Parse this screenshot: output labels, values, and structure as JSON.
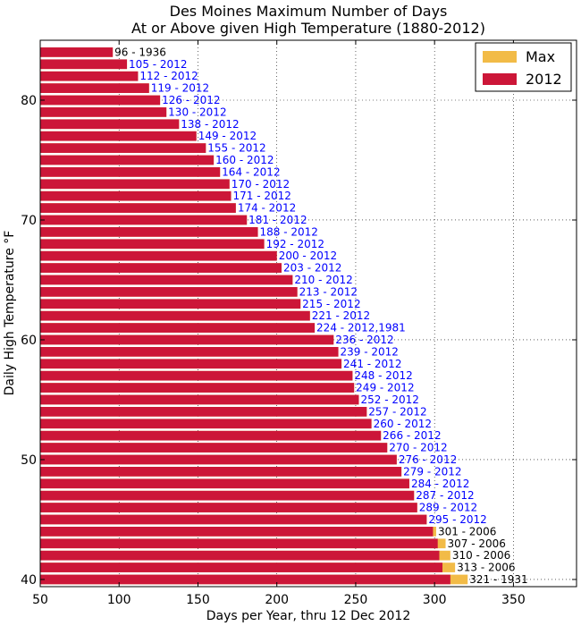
{
  "chart_data": {
    "type": "bar",
    "orientation": "horizontal",
    "title": "Des Moines Maximum Number of Days",
    "subtitle": "At or Above given High Temperature (1880-2012)",
    "xlabel": "Days per Year, thru 12 Dec 2012",
    "ylabel": "Daily High Temperature °F",
    "xlim": [
      50,
      390
    ],
    "ylim": [
      39.4,
      85
    ],
    "xticks": [
      50,
      100,
      150,
      200,
      250,
      300,
      350
    ],
    "yticks": [
      40,
      50,
      60,
      70,
      80
    ],
    "grid": true,
    "legend_position": "top-right",
    "colors": {
      "max": "#f2bb47",
      "y2012": "#cc1638",
      "label_2012": "#0000ff",
      "label_other": "#000000"
    },
    "series": [
      {
        "name": "Max"
      },
      {
        "name": "2012"
      }
    ],
    "data": [
      {
        "temp": 40,
        "max": 321,
        "y2012": 310,
        "label": "321 - 1931",
        "label_color": "black"
      },
      {
        "temp": 41,
        "max": 313,
        "y2012": 305,
        "label": "313 - 2006",
        "label_color": "black"
      },
      {
        "temp": 42,
        "max": 310,
        "y2012": 303,
        "label": "310 - 2006",
        "label_color": "black"
      },
      {
        "temp": 43,
        "max": 307,
        "y2012": 302,
        "label": "307 - 2006",
        "label_color": "black"
      },
      {
        "temp": 44,
        "max": 301,
        "y2012": 299,
        "label": "301 - 2006",
        "label_color": "black"
      },
      {
        "temp": 45,
        "max": 295,
        "y2012": 295,
        "label": "295 - 2012",
        "label_color": "blue"
      },
      {
        "temp": 46,
        "max": 289,
        "y2012": 289,
        "label": "289 - 2012",
        "label_color": "blue"
      },
      {
        "temp": 47,
        "max": 287,
        "y2012": 287,
        "label": "287 - 2012",
        "label_color": "blue"
      },
      {
        "temp": 48,
        "max": 284,
        "y2012": 284,
        "label": "284 - 2012",
        "label_color": "blue"
      },
      {
        "temp": 49,
        "max": 279,
        "y2012": 279,
        "label": "279 - 2012",
        "label_color": "blue"
      },
      {
        "temp": 50,
        "max": 276,
        "y2012": 276,
        "label": "276 - 2012",
        "label_color": "blue"
      },
      {
        "temp": 51,
        "max": 270,
        "y2012": 270,
        "label": "270 - 2012",
        "label_color": "blue"
      },
      {
        "temp": 52,
        "max": 266,
        "y2012": 266,
        "label": "266 - 2012",
        "label_color": "blue"
      },
      {
        "temp": 53,
        "max": 260,
        "y2012": 260,
        "label": "260 - 2012",
        "label_color": "blue"
      },
      {
        "temp": 54,
        "max": 257,
        "y2012": 257,
        "label": "257 - 2012",
        "label_color": "blue"
      },
      {
        "temp": 55,
        "max": 252,
        "y2012": 252,
        "label": "252 - 2012",
        "label_color": "blue"
      },
      {
        "temp": 56,
        "max": 249,
        "y2012": 249,
        "label": "249 - 2012",
        "label_color": "blue"
      },
      {
        "temp": 57,
        "max": 248,
        "y2012": 248,
        "label": "248 - 2012",
        "label_color": "blue"
      },
      {
        "temp": 58,
        "max": 241,
        "y2012": 241,
        "label": "241 - 2012",
        "label_color": "blue"
      },
      {
        "temp": 59,
        "max": 239,
        "y2012": 239,
        "label": "239 - 2012",
        "label_color": "blue"
      },
      {
        "temp": 60,
        "max": 236,
        "y2012": 236,
        "label": "236 - 2012",
        "label_color": "blue"
      },
      {
        "temp": 61,
        "max": 224,
        "y2012": 224,
        "label": "224 - 2012,1981",
        "label_color": "blue"
      },
      {
        "temp": 62,
        "max": 221,
        "y2012": 221,
        "label": "221 - 2012",
        "label_color": "blue"
      },
      {
        "temp": 63,
        "max": 215,
        "y2012": 215,
        "label": "215 - 2012",
        "label_color": "blue"
      },
      {
        "temp": 64,
        "max": 213,
        "y2012": 213,
        "label": "213 - 2012",
        "label_color": "blue"
      },
      {
        "temp": 65,
        "max": 210,
        "y2012": 210,
        "label": "210 - 2012",
        "label_color": "blue"
      },
      {
        "temp": 66,
        "max": 203,
        "y2012": 203,
        "label": "203 - 2012",
        "label_color": "blue"
      },
      {
        "temp": 67,
        "max": 200,
        "y2012": 200,
        "label": "200 - 2012",
        "label_color": "blue"
      },
      {
        "temp": 68,
        "max": 192,
        "y2012": 192,
        "label": "192 - 2012",
        "label_color": "blue"
      },
      {
        "temp": 69,
        "max": 188,
        "y2012": 188,
        "label": "188 - 2012",
        "label_color": "blue"
      },
      {
        "temp": 70,
        "max": 181,
        "y2012": 181,
        "label": "181 - 2012",
        "label_color": "blue"
      },
      {
        "temp": 71,
        "max": 174,
        "y2012": 174,
        "label": "174 - 2012",
        "label_color": "blue"
      },
      {
        "temp": 72,
        "max": 171,
        "y2012": 171,
        "label": "171 - 2012",
        "label_color": "blue"
      },
      {
        "temp": 73,
        "max": 170,
        "y2012": 170,
        "label": "170 - 2012",
        "label_color": "blue"
      },
      {
        "temp": 74,
        "max": 164,
        "y2012": 164,
        "label": "164 - 2012",
        "label_color": "blue"
      },
      {
        "temp": 75,
        "max": 160,
        "y2012": 160,
        "label": "160 - 2012",
        "label_color": "blue"
      },
      {
        "temp": 76,
        "max": 155,
        "y2012": 155,
        "label": "155 - 2012",
        "label_color": "blue"
      },
      {
        "temp": 77,
        "max": 149,
        "y2012": 149,
        "label": "149 - 2012",
        "label_color": "blue"
      },
      {
        "temp": 78,
        "max": 138,
        "y2012": 138,
        "label": "138 - 2012",
        "label_color": "blue"
      },
      {
        "temp": 79,
        "max": 130,
        "y2012": 130,
        "label": "130 - 2012",
        "label_color": "blue"
      },
      {
        "temp": 80,
        "max": 126,
        "y2012": 126,
        "label": "126 - 2012",
        "label_color": "blue"
      },
      {
        "temp": 81,
        "max": 119,
        "y2012": 119,
        "label": "119 - 2012",
        "label_color": "blue"
      },
      {
        "temp": 82,
        "max": 112,
        "y2012": 112,
        "label": "112 - 2012",
        "label_color": "blue"
      },
      {
        "temp": 83,
        "max": 105,
        "y2012": 105,
        "label": "105 - 2012",
        "label_color": "blue"
      },
      {
        "temp": 84,
        "max": 96,
        "y2012": 96,
        "label": "96 - 1936",
        "label_color": "black"
      }
    ]
  }
}
